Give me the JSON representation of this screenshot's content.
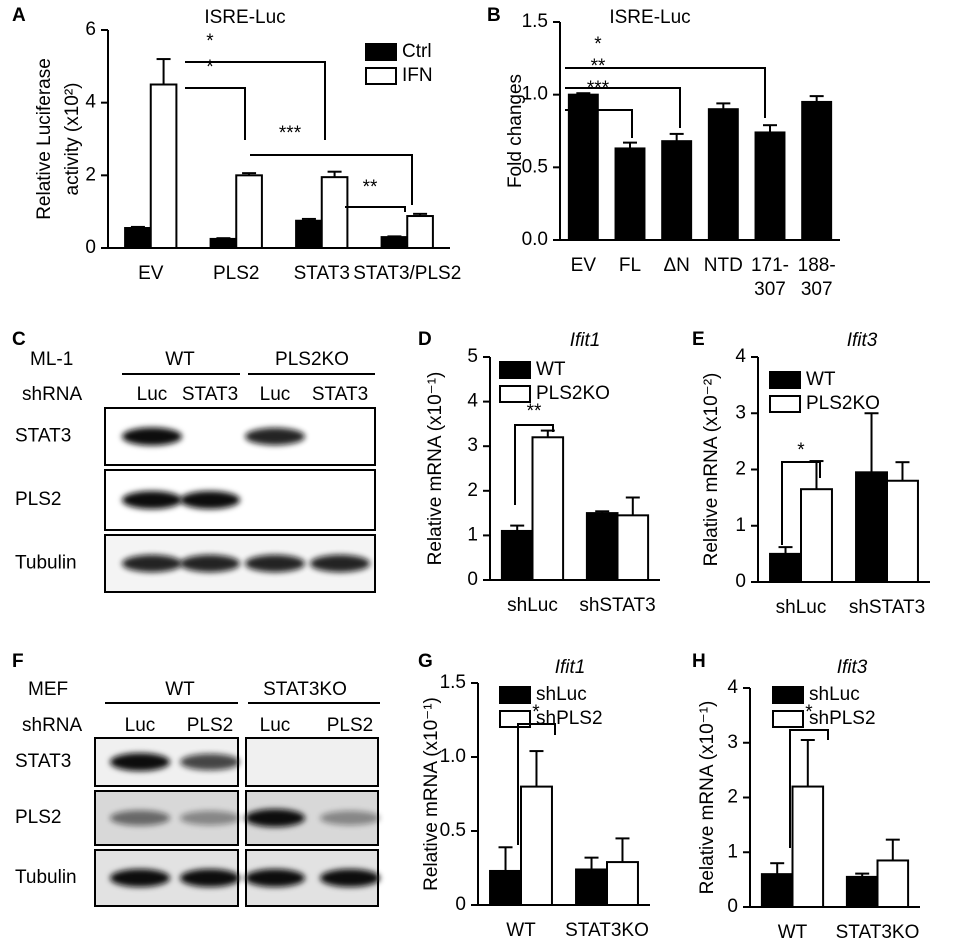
{
  "chart_data": [
    {
      "panel": "A",
      "type": "bar",
      "title": "ISRE-Luc",
      "y_label": [
        "Relative Luciferase",
        "activity (x10²)"
      ],
      "categories": [
        "EV",
        "PLS2",
        "STAT3",
        "STAT3/PLS2"
      ],
      "series": [
        {
          "name": "Ctrl",
          "color": "#000000",
          "values": [
            0.55,
            0.25,
            0.75,
            0.3
          ],
          "errors": [
            0.03,
            0.02,
            0.05,
            0.02
          ]
        },
        {
          "name": "IFN",
          "color": "#ffffff",
          "values": [
            4.5,
            2.0,
            1.95,
            0.88
          ],
          "errors": [
            0.7,
            0.06,
            0.15,
            0.06
          ]
        }
      ],
      "ylim": [
        0,
        6
      ],
      "yticks": [
        0,
        2,
        4,
        6
      ],
      "annotations": [
        "*",
        "*",
        "***",
        "**"
      ]
    },
    {
      "panel": "B",
      "type": "bar",
      "title": "ISRE-Luc",
      "y_label": "Fold changes",
      "categories": [
        "EV",
        "FL",
        "ΔN",
        "NTD",
        "171-307",
        "188-307"
      ],
      "series": [
        {
          "color": "#000000",
          "values": [
            1.0,
            0.63,
            0.68,
            0.9,
            0.74,
            0.95
          ],
          "errors": [
            0.01,
            0.04,
            0.05,
            0.04,
            0.05,
            0.04
          ]
        }
      ],
      "ylim": [
        0,
        1.5
      ],
      "yticks": [
        {
          "value": 0,
          "label": "0.0"
        },
        0.5,
        {
          "value": 1,
          "label": "1.0"
        },
        1.5
      ],
      "annotations": [
        "*",
        "**",
        "***"
      ]
    },
    {
      "panel": "D",
      "type": "bar",
      "title": "Ifit1",
      "y_label": "Relative mRNA (x10⁻¹)",
      "categories": [
        "shLuc",
        "shSTAT3"
      ],
      "series": [
        {
          "name": "WT",
          "color": "#000000",
          "values": [
            1.1,
            1.5
          ],
          "errors": [
            0.12,
            0.04
          ]
        },
        {
          "name": "PLS2KO",
          "color": "#ffffff",
          "values": [
            3.2,
            1.45
          ],
          "errors": [
            0.15,
            0.4
          ]
        }
      ],
      "ylim": [
        0,
        5
      ],
      "yticks": [
        0,
        1,
        2,
        3,
        4,
        5
      ],
      "annotations": [
        "**"
      ]
    },
    {
      "panel": "E",
      "type": "bar",
      "title": "Ifit3",
      "y_label": "Relative mRNA (x10⁻²)",
      "categories": [
        "shLuc",
        "shSTAT3"
      ],
      "series": [
        {
          "name": "WT",
          "color": "#000000",
          "values": [
            0.5,
            1.95
          ],
          "errors": [
            0.12,
            1.05
          ]
        },
        {
          "name": "PLS2KO",
          "color": "#ffffff",
          "values": [
            1.65,
            1.8
          ],
          "errors": [
            0.5,
            0.33
          ]
        }
      ],
      "ylim": [
        0,
        4
      ],
      "yticks": [
        0,
        1,
        2,
        3,
        4
      ],
      "annotations": [
        "*"
      ]
    },
    {
      "panel": "G",
      "type": "bar",
      "title": "Ifit1",
      "y_label": "Relative mRNA (x10⁻¹)",
      "categories": [
        "WT",
        "STAT3KO"
      ],
      "series": [
        {
          "name": "shLuc",
          "color": "#000000",
          "values": [
            0.23,
            0.24
          ],
          "errors": [
            0.16,
            0.08
          ]
        },
        {
          "name": "shPLS2",
          "color": "#ffffff",
          "values": [
            0.8,
            0.29
          ],
          "errors": [
            0.24,
            0.16
          ]
        }
      ],
      "ylim": [
        0,
        1.5
      ],
      "yticks": [
        0,
        0.5,
        {
          "value": 1,
          "label": "1.0"
        },
        1.5
      ],
      "annotations": [
        "*"
      ]
    },
    {
      "panel": "H",
      "type": "bar",
      "title": "Ifit3",
      "y_label": "Relative mRNA (x10⁻¹)",
      "categories": [
        "WT",
        "STAT3KO"
      ],
      "series": [
        {
          "name": "shLuc",
          "color": "#000000",
          "values": [
            0.6,
            0.55
          ],
          "errors": [
            0.2,
            0.06
          ]
        },
        {
          "name": "shPLS2",
          "color": "#ffffff",
          "values": [
            2.2,
            0.85
          ],
          "errors": [
            0.85,
            0.38
          ]
        }
      ],
      "ylim": [
        0,
        4
      ],
      "yticks": [
        0,
        1,
        2,
        3,
        4
      ],
      "annotations": [
        "*"
      ]
    }
  ],
  "blots": [
    {
      "panel": "C",
      "cell_line": "ML-1",
      "shrna_label": "shRNA",
      "groups": [
        "WT",
        "PLS2KO"
      ],
      "lanes": [
        "Luc",
        "STAT3",
        "Luc",
        "STAT3"
      ],
      "rows": [
        "STAT3",
        "PLS2",
        "Tubulin"
      ]
    },
    {
      "panel": "F",
      "cell_line": "MEF",
      "shrna_label": "shRNA",
      "groups": [
        "WT",
        "STAT3KO"
      ],
      "lanes": [
        "Luc",
        "PLS2",
        "Luc",
        "PLS2"
      ],
      "rows": [
        "STAT3",
        "PLS2",
        "Tubulin"
      ]
    }
  ]
}
